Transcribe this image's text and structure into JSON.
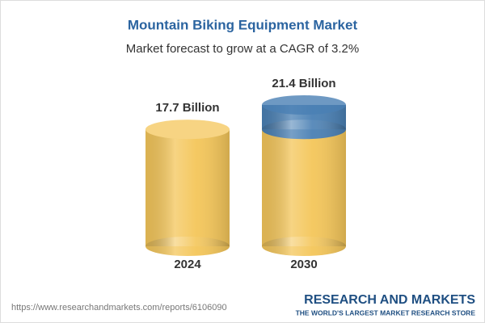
{
  "chart_data": {
    "type": "bar",
    "title": "Mountain Biking Equipment Market",
    "subtitle": "Market forecast to grow at a CAGR of 3.2%",
    "categories": [
      "2024",
      "2030"
    ],
    "values": [
      17.7,
      21.4
    ],
    "value_labels": [
      "17.7 Billion",
      "21.4 Billion"
    ],
    "color": "#f4c65a",
    "growth_color": "#4a80b4",
    "source": "https://www.researchandmarkets.com/reports/6106090",
    "brand": "RESEARCH AND MARKETS",
    "tagline": "THE WORLD'S LARGEST MARKET RESEARCH STORE"
  }
}
